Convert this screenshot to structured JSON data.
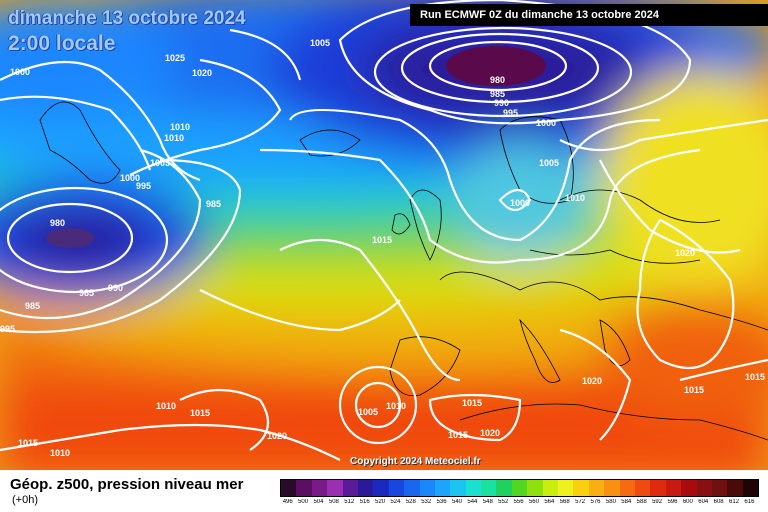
{
  "map": {
    "title_date": "dimanche 13 octobre 2024",
    "title_time": "2:00 locale",
    "run_banner": "Run ECMWF 0Z du dimanche 13 octobre 2024",
    "copyright": "Copyright 2024 Meteociel.fr",
    "isobar_labels": [
      "1025",
      "1020",
      "1005",
      "1000",
      "1010",
      "1010",
      "1005",
      "1000",
      "995",
      "985",
      "980",
      "985",
      "985",
      "990",
      "995",
      "980",
      "985",
      "990",
      "995",
      "1000",
      "1005",
      "1000",
      "1010",
      "1015",
      "1020",
      "1010",
      "1015",
      "1005",
      "1010",
      "1015",
      "1015",
      "1020",
      "1020",
      "1015",
      "1015",
      "1010",
      "1020",
      "1015",
      "995"
    ]
  },
  "legend": {
    "title": "Géop. z500, pression niveau mer",
    "subtitle": "(+0h)",
    "scale_labels": [
      "496",
      "500",
      "504",
      "508",
      "512",
      "516",
      "520",
      "524",
      "528",
      "532",
      "536",
      "540",
      "544",
      "548",
      "552",
      "556",
      "560",
      "564",
      "568",
      "572",
      "576",
      "580",
      "584",
      "588",
      "592",
      "596",
      "600",
      "604",
      "608",
      "612",
      "616"
    ],
    "scale_colors": [
      "#2a0a2a",
      "#5a1060",
      "#7a1a8a",
      "#9a30b0",
      "#5a1a9a",
      "#2a1a9a",
      "#1a2ac0",
      "#1a46e0",
      "#1a66f0",
      "#1a86ff",
      "#1aa6ff",
      "#1ac6f0",
      "#1ae0d0",
      "#1ae0a0",
      "#20d060",
      "#50d820",
      "#90e010",
      "#c8ee10",
      "#f0f020",
      "#f8d010",
      "#f8b010",
      "#f89010",
      "#f86a10",
      "#f04a10",
      "#e02a10",
      "#c81a10",
      "#a80a10",
      "#881010",
      "#701010",
      "#4a0a0a",
      "#200404"
    ]
  }
}
